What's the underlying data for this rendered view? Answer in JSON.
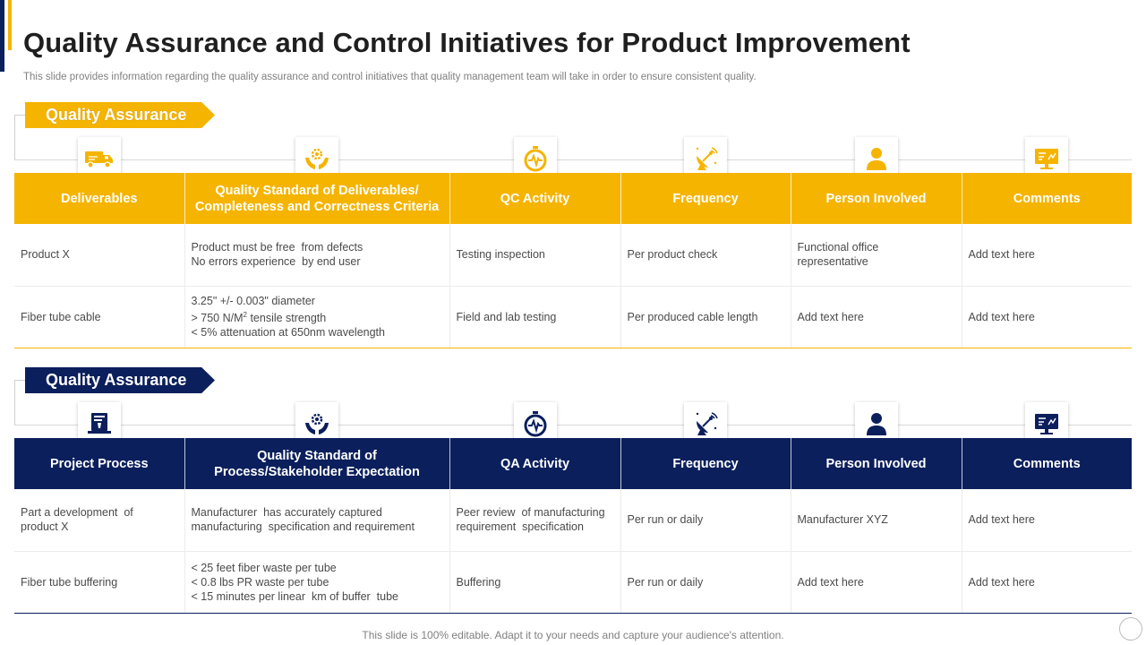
{
  "title": "Quality Assurance and Control Initiatives for Product Improvement",
  "subtitle": "This slide provides information regarding the quality assurance and control initiatives that quality management team will take in order to ensure consistent quality.",
  "colors": {
    "gold": "#f5b400",
    "navy": "#0b1f5c"
  },
  "section1": {
    "banner": "Quality Assurance",
    "icons": [
      "delivery-truck-icon",
      "hands-gear-icon",
      "stopwatch-pulse-icon",
      "satellite-dish-icon",
      "person-icon",
      "presentation-monitor-icon"
    ],
    "headers": [
      "Deliverables",
      "Quality Standard of Deliverables/ Completeness and Correctness Criteria",
      "QC Activity",
      "Frequency",
      "Person Involved",
      "Comments"
    ],
    "rows": [
      {
        "deliverable": "Product X",
        "standard_line1": "Product must be free  from defects",
        "standard_line2": "No errors experience  by end user",
        "activity": "Testing inspection",
        "frequency": "Per product  check",
        "person_line1": "Functional office",
        "person_line2": "representative",
        "comments": "Add text here"
      },
      {
        "deliverable": "Fiber tube cable",
        "standard_line1": "3.25\" +/- 0.003\" diameter",
        "standard_line2_pre": "> 750 N/M",
        "standard_line2_sup": "2",
        "standard_line2_post": " tensile strength",
        "standard_line3": "< 5% attenuation at 650nm wavelength",
        "activity": "Field and lab testing",
        "frequency": "Per produced  cable length",
        "person": "Add text here",
        "comments": "Add text here"
      }
    ]
  },
  "section2": {
    "banner": "Quality Assurance",
    "icons": [
      "book-laptop-icon",
      "hands-gear-icon",
      "stopwatch-pulse-icon",
      "satellite-dish-icon",
      "person-icon",
      "presentation-monitor-icon"
    ],
    "headers_line1": [
      "Project Process",
      "Quality Standard of",
      "QA Activity",
      "Frequency",
      "Person Involved",
      "Comments"
    ],
    "header2_line2": "Process/Stakeholder Expectation",
    "rows": [
      {
        "process_line1": "Part a development  of",
        "process_line2": "product X",
        "standard_line1": "Manufacturer  has accurately captured",
        "standard_line2": "manufacturing  specification and requirement",
        "activity_line1": "Peer review  of manufacturing",
        "activity_line2": "requirement  specification",
        "frequency": "Per run  or daily",
        "person": "Manufacturer  XYZ",
        "comments": "Add text here"
      },
      {
        "process": "Fiber tube buffering",
        "standard_line1": "< 25 feet fiber waste per tube",
        "standard_line2": "< 0.8 lbs PR waste per tube",
        "standard_line3": "< 15 minutes per linear  km of buffer  tube",
        "activity": "Buffering",
        "frequency": "Per run  or daily",
        "person": "Add text here",
        "comments": "Add text here"
      }
    ]
  },
  "footer": "This slide is 100% editable. Adapt it to your needs and capture your audience's attention."
}
